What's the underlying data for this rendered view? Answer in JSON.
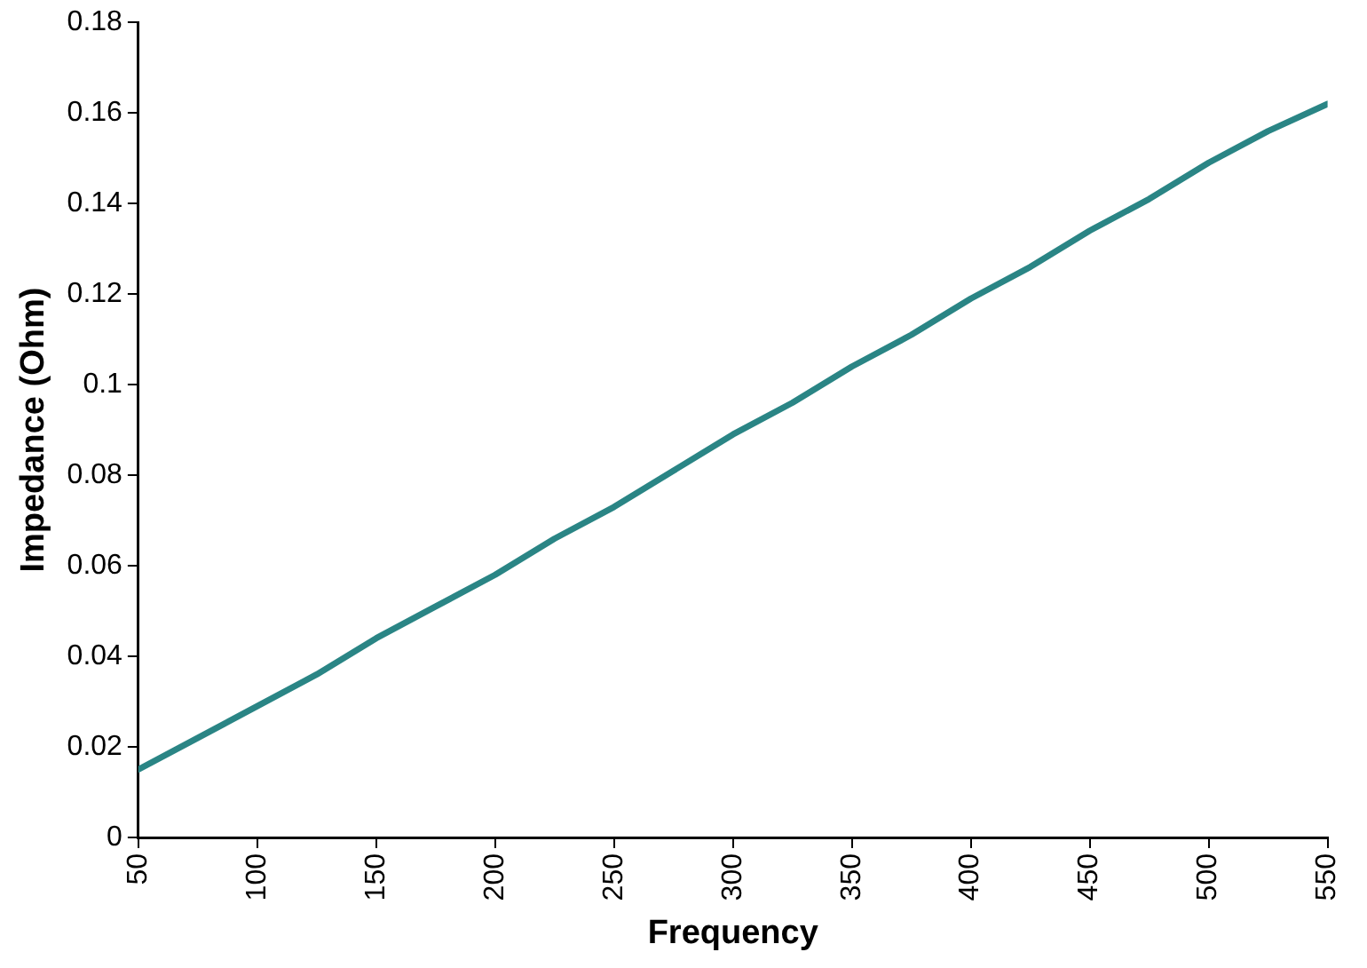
{
  "chart_data": {
    "type": "line",
    "xlabel": "Frequency",
    "ylabel": "Impedance (Ohm)",
    "x": [
      50,
      75,
      100,
      125,
      150,
      175,
      200,
      225,
      250,
      275,
      300,
      325,
      350,
      375,
      400,
      425,
      450,
      475,
      500,
      525,
      550
    ],
    "series": [
      {
        "color": "#2a8585",
        "values": [
          0.015,
          0.022,
          0.029,
          0.036,
          0.044,
          0.051,
          0.058,
          0.066,
          0.073,
          0.081,
          0.089,
          0.096,
          0.104,
          0.111,
          0.119,
          0.126,
          0.134,
          0.141,
          0.149,
          0.156,
          0.162
        ]
      }
    ],
    "xlim": [
      50,
      550
    ],
    "xticks": [
      50,
      100,
      150,
      200,
      250,
      300,
      350,
      400,
      450,
      500,
      550
    ],
    "ylim": [
      0,
      0.18
    ],
    "yticks": [
      0,
      0.02,
      0.04,
      0.06,
      0.08,
      0.1,
      0.12,
      0.14,
      0.16,
      0.18
    ],
    "grid": false,
    "legend": false,
    "marker": "none",
    "line_style": "solid"
  }
}
